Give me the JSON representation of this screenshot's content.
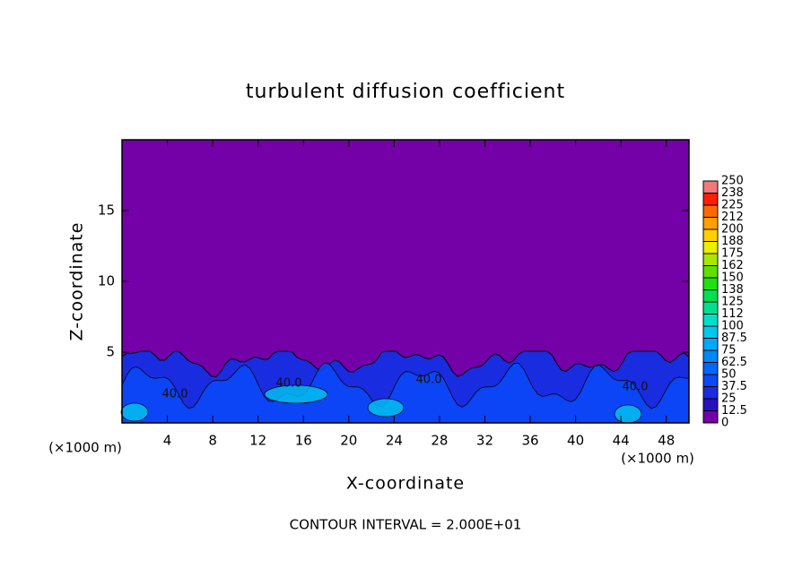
{
  "chart_data": {
    "type": "contour",
    "title": "turbulent diffusion coefficient",
    "x_label": "X-coordinate",
    "y_label": "Z-coordinate",
    "x_unit_labels": [
      "(×1000 m)",
      "(×1000 m)"
    ],
    "footer": "CONTOUR INTERVAL = 2.000E+01",
    "xlim": [
      0,
      50
    ],
    "ylim": [
      0,
      20
    ],
    "xticks": [
      4,
      8,
      12,
      16,
      20,
      24,
      28,
      32,
      36,
      40,
      44,
      48
    ],
    "yticks": [
      5,
      10,
      15
    ],
    "levels": [
      0,
      12.5,
      25,
      37.5,
      50,
      62.5,
      75,
      87.5,
      100,
      {
        "value": 112.5,
        "label": "112"
      },
      125,
      {
        "value": 137.5,
        "label": "138"
      },
      150,
      {
        "value": 162.5,
        "label": "162"
      },
      175,
      {
        "value": 187.5,
        "label": "188"
      },
      200,
      {
        "value": 212.5,
        "label": "212"
      },
      225,
      {
        "value": 237.5,
        "label": "238"
      },
      250
    ],
    "colors": [
      "#7400a8",
      "#2a10c0",
      "#1a2ce0",
      "#0a48f8",
      "#0068ff",
      "#0088ff",
      "#00a8ff",
      "#00c8f0",
      "#00e0c8",
      "#00e090",
      "#00e050",
      "#20e010",
      "#60e000",
      "#a8e800",
      "#e8f000",
      "#ffd000",
      "#ffa000",
      "#ff6a00",
      "#ff2000",
      "#f07a7a"
    ],
    "annotations": [
      "40.0",
      "40.0",
      "40.0",
      "40.0"
    ]
  }
}
